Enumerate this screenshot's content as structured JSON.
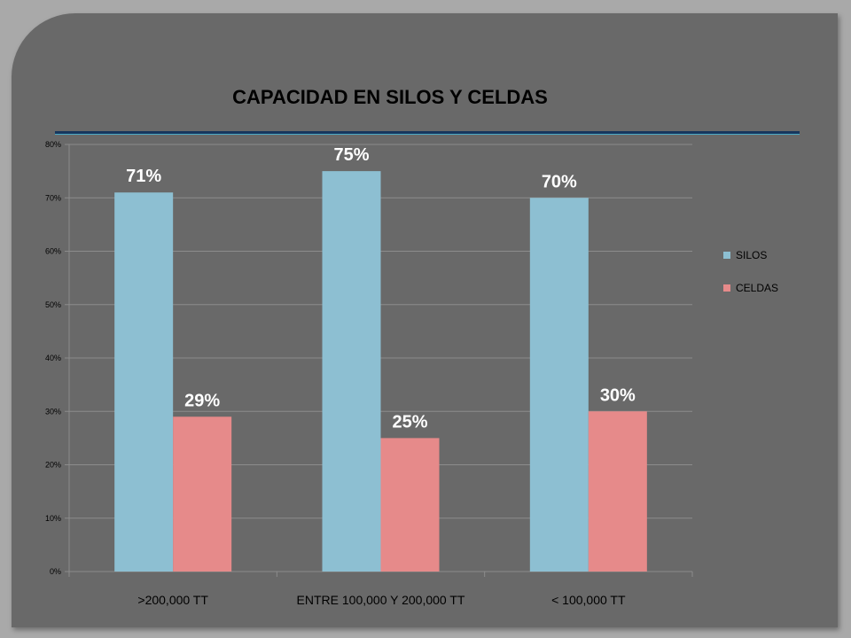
{
  "chart_data": {
    "type": "bar",
    "title": "CAPACIDAD EN SILOS Y CELDAS",
    "categories": [
      ">200,000 TT",
      "ENTRE 100,000 Y 200,000 TT",
      "< 100,000 TT"
    ],
    "series": [
      {
        "name": "SILOS",
        "values": [
          71,
          75,
          70
        ],
        "labels": [
          "71%",
          "75%",
          "70%"
        ],
        "color": "#8dbfd2"
      },
      {
        "name": "CELDAS",
        "values": [
          29,
          25,
          30
        ],
        "labels": [
          "29%",
          "25%",
          "30%"
        ],
        "color": "#e68a8a"
      }
    ],
    "ylim": [
      0,
      80
    ],
    "yticks": [
      0,
      10,
      20,
      30,
      40,
      50,
      60,
      70,
      80
    ],
    "ytick_labels": [
      "0%",
      "10%",
      "20%",
      "30%",
      "40%",
      "50%",
      "60%",
      "70%",
      "80%"
    ],
    "grid": true,
    "legend": "right"
  }
}
